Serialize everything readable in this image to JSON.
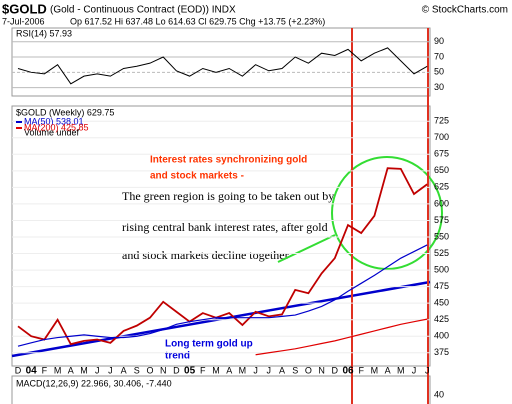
{
  "chart_data": {
    "type": "line",
    "title": "$GOLD",
    "subtitle": "(Gold - Continuous Contract (EOD)) INDX",
    "copyright": "© StockCharts.com",
    "date": "7-Jul-2006",
    "quote": "Op 617.52  Hi 637.48  Lo 614.63  Cl 629.75  Chg +13.75 (+2.23%)",
    "legend_main": "$GOLD (Weekly) 629.75",
    "legend_volume": "Volume undef",
    "rsi_label": "RSI(14) 57.93",
    "macd_label": "MACD(12,26,9) 22.966, 30.406, -7.440",
    "categories": [
      "D",
      "04",
      "F",
      "M",
      "A",
      "M",
      "J",
      "J",
      "A",
      "S",
      "O",
      "N",
      "D",
      "05",
      "F",
      "M",
      "A",
      "M",
      "J",
      "J",
      "A",
      "S",
      "O",
      "N",
      "D",
      "06",
      "F",
      "M",
      "A",
      "M",
      "J",
      "J"
    ],
    "series": [
      {
        "name": "$GOLD",
        "color": "#c00000",
        "values": [
          415,
          400,
          395,
          425,
          388,
          393,
          395,
          390,
          408,
          416,
          428,
          452,
          437,
          422,
          435,
          428,
          435,
          417,
          437,
          430,
          433,
          470,
          465,
          495,
          518,
          568,
          556,
          582,
          654,
          653,
          615,
          629.75
        ]
      },
      {
        "name": "MA(50) 538.01",
        "color": "#0000cc",
        "values": [
          385,
          390,
          395,
          398,
          400,
          402,
          400,
          398,
          398,
          400,
          404,
          410,
          418,
          422,
          425,
          428,
          428,
          428,
          428,
          428,
          430,
          432,
          438,
          445,
          455,
          468,
          480,
          492,
          505,
          518,
          528,
          538.01
        ]
      },
      {
        "name": "MA(200) 425.85",
        "color": "#e00000",
        "values": [
          null,
          null,
          null,
          null,
          null,
          null,
          null,
          null,
          null,
          null,
          null,
          null,
          null,
          null,
          null,
          null,
          null,
          null,
          372,
          375,
          378,
          381,
          385,
          389,
          393,
          398,
          403,
          408,
          413,
          418,
          422,
          425.85
        ]
      }
    ],
    "ylim": [
      355,
      748
    ],
    "yticks": [
      375,
      400,
      425,
      450,
      475,
      500,
      525,
      550,
      575,
      600,
      625,
      650,
      675,
      700,
      725
    ],
    "rsi": {
      "color": "#000000",
      "values": [
        55,
        50,
        48,
        60,
        35,
        45,
        48,
        45,
        55,
        58,
        62,
        70,
        52,
        45,
        55,
        50,
        55,
        45,
        60,
        52,
        55,
        70,
        62,
        75,
        72,
        80,
        65,
        75,
        82,
        65,
        48,
        57.93
      ],
      "ylim": [
        19,
        108
      ],
      "yticks": [
        30,
        50,
        70,
        90
      ]
    },
    "macd_yticks": [
      40
    ],
    "annotations": {
      "interest": [
        "Interest rates synchronizing  gold",
        "and stock markets -"
      ],
      "green": [
        "The green region is going to be taken out by",
        "rising central bank interest rates, after gold",
        "and stock markets decline together"
      ],
      "trend": [
        "Long term gold up",
        "trend"
      ]
    }
  }
}
